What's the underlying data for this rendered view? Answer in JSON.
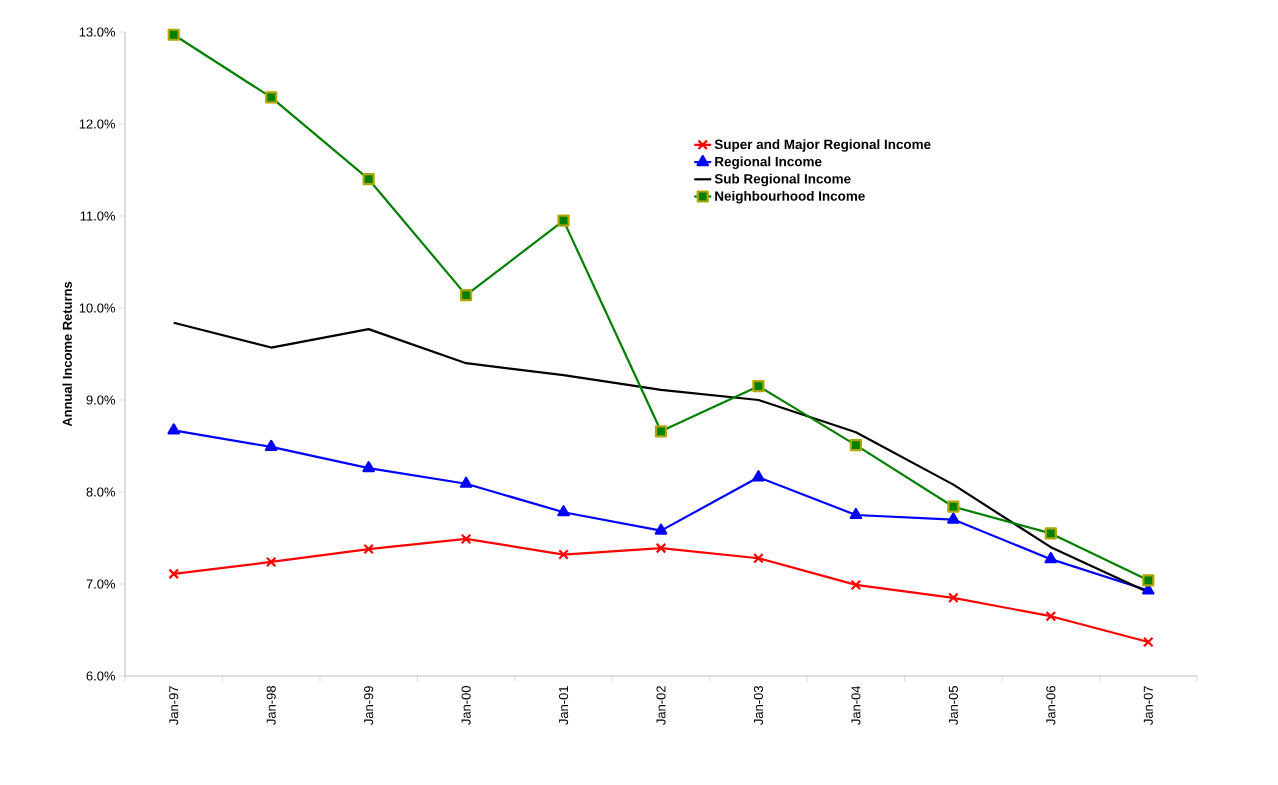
{
  "chart_data": {
    "type": "line",
    "ylabel": "Annual Income Returns",
    "categories": [
      "Jan-97",
      "Jan-98",
      "Jan-99",
      "Jan-00",
      "Jan-01",
      "Jan-02",
      "Jan-03",
      "Jan-04",
      "Jan-05",
      "Jan-06",
      "Jan-07"
    ],
    "series": [
      {
        "name": "Super and Major Regional Income",
        "color": "#ff0000",
        "marker": "cross",
        "values": [
          7.11,
          7.24,
          7.38,
          7.49,
          7.32,
          7.39,
          7.28,
          6.99,
          6.85,
          6.65,
          6.37
        ]
      },
      {
        "name": "Regional Income",
        "color": "#0000ff",
        "marker": "triangle",
        "values": [
          8.67,
          8.49,
          8.26,
          8.09,
          7.78,
          7.58,
          8.16,
          7.75,
          7.7,
          7.27,
          6.93
        ]
      },
      {
        "name": "Sub Regional Income",
        "color": "#000000",
        "marker": "none",
        "values": [
          9.84,
          9.57,
          9.77,
          9.4,
          9.27,
          9.11,
          9.0,
          8.65,
          8.08,
          7.4,
          6.91
        ]
      },
      {
        "name": "Neighbourhood Income",
        "color": "#008000",
        "marker": "square",
        "values": [
          12.97,
          12.29,
          11.4,
          10.14,
          10.95,
          8.66,
          9.15,
          8.51,
          7.84,
          7.55,
          7.04
        ]
      }
    ],
    "ylim": [
      6,
      13
    ],
    "yticks": [
      {
        "value": 6,
        "label": "6.0%"
      },
      {
        "value": 7,
        "label": "7.0%"
      },
      {
        "value": 8,
        "label": "8.0%"
      },
      {
        "value": 9,
        "label": "9.0%"
      },
      {
        "value": 10,
        "label": "10.0%"
      },
      {
        "value": 11,
        "label": "11.0%"
      },
      {
        "value": 12,
        "label": "12.0%"
      },
      {
        "value": 13,
        "label": "13.0%"
      }
    ],
    "grid": false,
    "legend": "top right",
    "line_style": "solid"
  }
}
